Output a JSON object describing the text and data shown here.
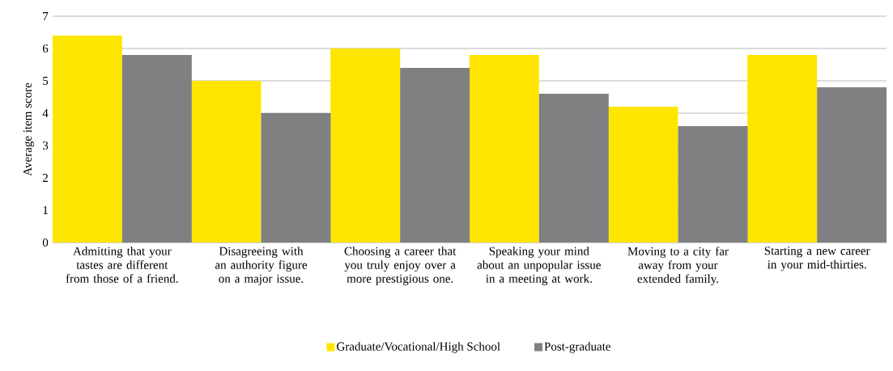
{
  "chart_data": {
    "type": "bar",
    "ylabel": "Average item score",
    "categories": [
      "Admitting that your tastes are different from those of a friend.",
      "Disagreeing with an authority figure on a major issue.",
      "Choosing a career that you truly enjoy over a more prestigious one.",
      "Speaking your mind about an unpopular issue in a meeting at work.",
      "Moving to a city far away from your extended family.",
      "Starting a new career in your mid-thirties."
    ],
    "series": [
      {
        "name": "Graduate/Vocational/High School",
        "color": "#ffe600",
        "values": [
          6.4,
          5.0,
          6.0,
          5.8,
          4.2,
          5.8
        ]
      },
      {
        "name": "Post-graduate",
        "color": "#808083",
        "values": [
          5.8,
          4.0,
          5.4,
          4.6,
          3.6,
          4.8
        ]
      }
    ],
    "ylim": [
      0,
      7
    ],
    "yticks": [
      0,
      1,
      2,
      3,
      4,
      5,
      6,
      7
    ],
    "grid": "y",
    "legend": "bottom"
  }
}
